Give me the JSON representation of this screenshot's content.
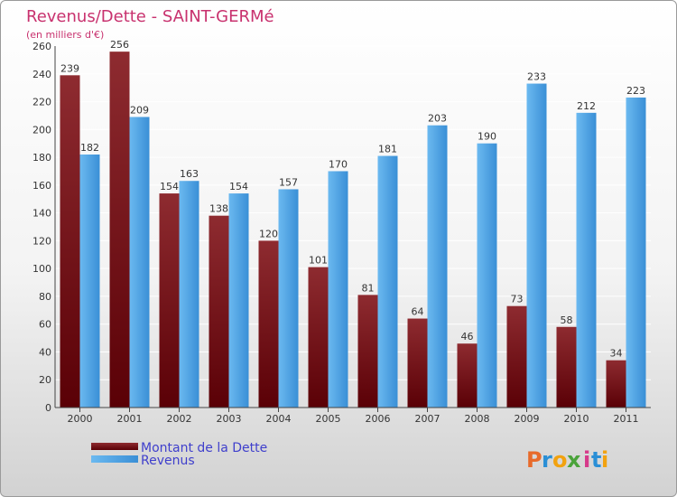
{
  "chart_data": {
    "type": "bar",
    "title": "Revenus/Dette - SAINT-GERMé",
    "subtitle": "(en milliers d'€)",
    "xlabel": "",
    "ylabel": "",
    "ylim": [
      0,
      260
    ],
    "yticks": [
      0,
      20,
      40,
      60,
      80,
      100,
      120,
      140,
      160,
      180,
      200,
      220,
      240,
      260
    ],
    "grid": true,
    "categories": [
      "2000",
      "2001",
      "2002",
      "2003",
      "2004",
      "2005",
      "2006",
      "2007",
      "2008",
      "2009",
      "2010",
      "2011"
    ],
    "series": [
      {
        "name": "Montant de la Dette",
        "color": "#7a1a1f",
        "values": [
          239,
          256,
          154,
          138,
          120,
          101,
          81,
          64,
          46,
          73,
          58,
          34
        ]
      },
      {
        "name": "Revenus",
        "color": "#4aa3e6",
        "values": [
          182,
          209,
          163,
          154,
          157,
          170,
          181,
          203,
          190,
          233,
          212,
          223
        ]
      }
    ],
    "legend_position": "bottom-left"
  },
  "branding": {
    "logo_letters": [
      "P",
      "r",
      "o",
      "x",
      "i",
      "t",
      "i"
    ],
    "logo_colors": [
      "#e86a2a",
      "#2a8fd6",
      "#f2a20f",
      "#4aa33a",
      "#d63a8a",
      "#2a8fd6",
      "#f2a20f"
    ]
  }
}
